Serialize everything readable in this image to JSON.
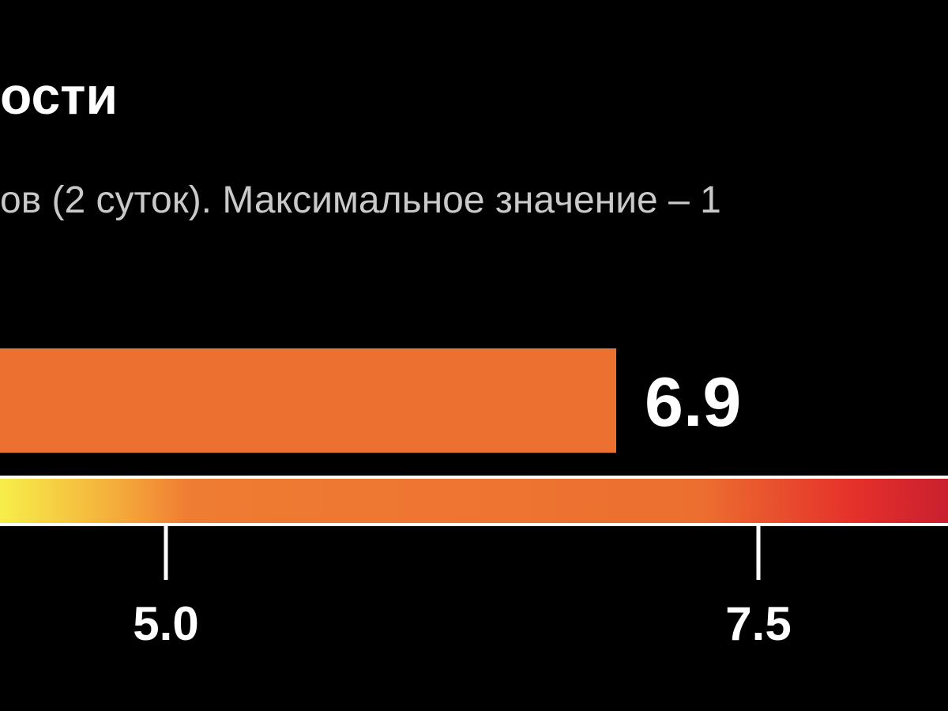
{
  "chart_data": {
    "type": "bar",
    "title": "ости",
    "subtitle": "ов (2 суток). Максимальное значение – 1",
    "categories": [
      ""
    ],
    "values": [
      6.9
    ],
    "value_labels": [
      "6.9"
    ],
    "xlim": [
      4.3,
      8.3
    ],
    "x_ticks": [
      {
        "value": 5.0,
        "label": "5.0"
      },
      {
        "value": 7.5,
        "label": "7.5"
      }
    ],
    "bar_color": "#ec7030",
    "colorbar": {
      "stops": [
        {
          "value": 4.3,
          "color": "#f7ee4a"
        },
        {
          "value": 4.75,
          "color": "#f5b23c"
        },
        {
          "value": 5.1,
          "color": "#ef7c33"
        },
        {
          "value": 7.25,
          "color": "#ec6f30"
        },
        {
          "value": 7.9,
          "color": "#e5312b"
        },
        {
          "value": 8.3,
          "color": "#c91f2f"
        }
      ]
    },
    "background_color": "#000000",
    "text_color": "#ffffff",
    "subtitle_color": "#c9c9c9"
  }
}
